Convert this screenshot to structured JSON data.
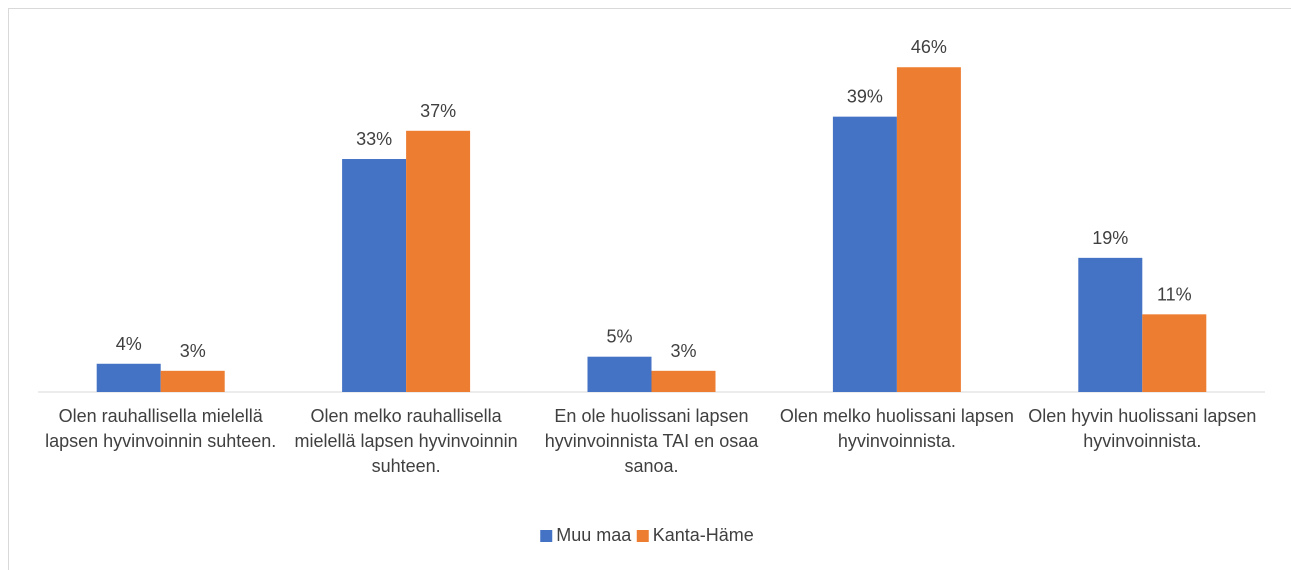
{
  "chart_data": {
    "type": "bar",
    "categories": [
      "Olen rauhallisella mielellä lapsen hyvinvoinnin suhteen.",
      "Olen melko rauhallisella mielellä lapsen hyvinvoinnin suhteen.",
      "En ole huolissani lapsen hyvinvoinnista TAI en osaa sanoa.",
      "Olen melko huolissani lapsen hyvinvoinnista.",
      "Olen hyvin huolissani lapsen hyvinvoinnista."
    ],
    "series": [
      {
        "name": "Muu maa",
        "color": "#4472c4",
        "values": [
          4,
          33,
          5,
          39,
          19
        ],
        "value_labels": [
          "4%",
          "33%",
          "5%",
          "39%",
          "19%"
        ]
      },
      {
        "name": "Kanta-Häme",
        "color": "#ed7d31",
        "values": [
          3,
          37,
          3,
          46,
          11
        ],
        "value_labels": [
          "3%",
          "37%",
          "3%",
          "46%",
          "11%"
        ]
      }
    ],
    "ylim": [
      0,
      50
    ],
    "legend": "bottom"
  }
}
